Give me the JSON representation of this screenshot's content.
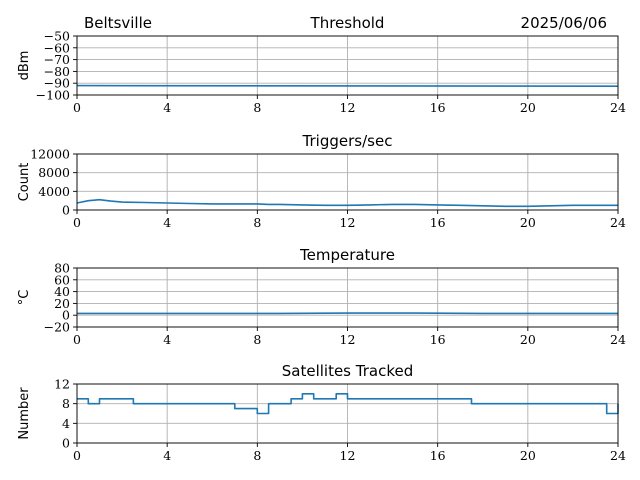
{
  "header": {
    "left": "Beltsville",
    "right": "2025/06/06"
  },
  "series_color": "#1f77b4",
  "chart_data": [
    {
      "type": "line",
      "title": "Threshold",
      "ylabel": "dBm",
      "xlim": [
        0,
        24
      ],
      "ylim": [
        -100,
        -50
      ],
      "xticks": [
        0,
        4,
        8,
        12,
        16,
        20,
        24
      ],
      "yticks": [
        -100,
        -90,
        -80,
        -70,
        -60,
        -50
      ],
      "grid": true,
      "series": [
        {
          "x": [
            0,
            24
          ],
          "y": [
            -92,
            -92.5
          ]
        }
      ]
    },
    {
      "type": "line",
      "title": "Triggers/sec",
      "ylabel": "Count",
      "xlim": [
        0,
        24
      ],
      "ylim": [
        0,
        12000
      ],
      "xticks": [
        0,
        4,
        8,
        12,
        16,
        20,
        24
      ],
      "yticks": [
        0,
        4000,
        8000,
        12000
      ],
      "grid": true,
      "series": [
        {
          "x": [
            0,
            0.5,
            1,
            1.5,
            2,
            3,
            4,
            5,
            6,
            7,
            8,
            8.5,
            9,
            10,
            11,
            12,
            13,
            14,
            15,
            16,
            17,
            18,
            19,
            20,
            21,
            22,
            23,
            24
          ],
          "y": [
            1500,
            2000,
            2200,
            1900,
            1700,
            1600,
            1500,
            1400,
            1300,
            1300,
            1300,
            1200,
            1200,
            1100,
            1000,
            1000,
            1100,
            1200,
            1200,
            1100,
            1000,
            900,
            800,
            800,
            900,
            1000,
            1000,
            1000
          ]
        }
      ]
    },
    {
      "type": "line",
      "title": "Temperature",
      "ylabel": "°C",
      "xlim": [
        0,
        24
      ],
      "ylim": [
        -20,
        80
      ],
      "xticks": [
        0,
        4,
        8,
        12,
        16,
        20,
        24
      ],
      "yticks": [
        -20,
        0,
        20,
        40,
        60,
        80
      ],
      "grid": true,
      "series": [
        {
          "x": [
            0,
            9,
            12,
            15,
            18,
            24
          ],
          "y": [
            3,
            3,
            3.5,
            3.5,
            3,
            3
          ]
        }
      ]
    },
    {
      "type": "line",
      "title": "Satellites Tracked",
      "ylabel": "Number",
      "xlim": [
        0,
        24
      ],
      "ylim": [
        0,
        12
      ],
      "xticks": [
        0,
        4,
        8,
        12,
        16,
        20,
        24
      ],
      "yticks": [
        0,
        4,
        8,
        12
      ],
      "grid": true,
      "series": [
        {
          "x": [
            0,
            0.5,
            1,
            1.5,
            2,
            2.5,
            3,
            3.5,
            4,
            4.5,
            5,
            5.5,
            6,
            6.5,
            7,
            7.5,
            8,
            8.5,
            9,
            9.5,
            10,
            10.5,
            11,
            11.5,
            12,
            12.5,
            13,
            13.5,
            14,
            14.5,
            15,
            15.5,
            16,
            16.5,
            17,
            17.5,
            18,
            18.5,
            19,
            19.5,
            20,
            20.5,
            21,
            21.5,
            22,
            22.5,
            23,
            23.5,
            24
          ],
          "y": [
            9,
            8,
            9,
            9,
            9,
            8,
            8,
            8,
            8,
            8,
            8,
            8,
            8,
            8,
            7,
            7,
            6,
            8,
            8,
            9,
            10,
            9,
            9,
            10,
            9,
            9,
            9,
            9,
            9,
            9,
            9,
            9,
            9,
            9,
            9,
            8,
            8,
            8,
            8,
            8,
            8,
            8,
            8,
            8,
            8,
            8,
            8,
            6,
            8
          ]
        }
      ]
    }
  ]
}
